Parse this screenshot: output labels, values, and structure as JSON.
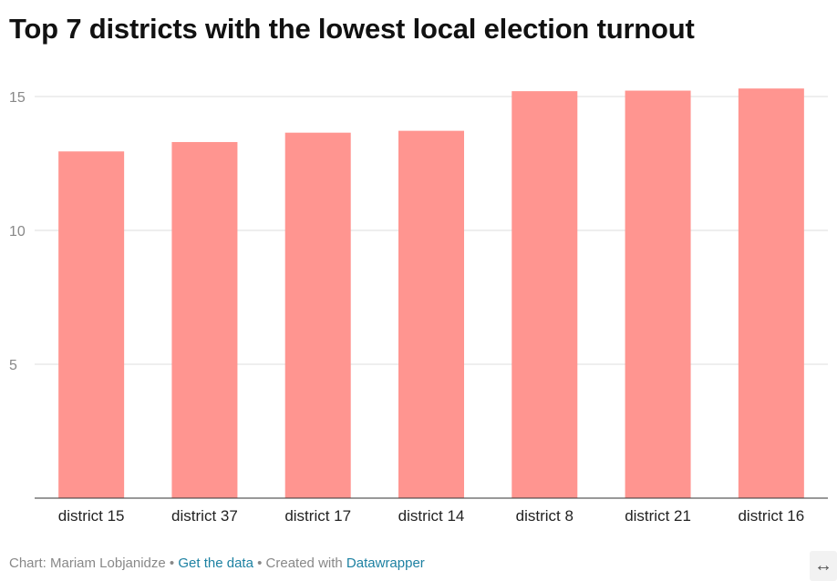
{
  "chart_data": {
    "type": "bar",
    "title": "Top 7 districts with the lowest local election turnout",
    "categories": [
      "district 15",
      "district 37",
      "district 17",
      "district 14",
      "district 8",
      "district 21",
      "district 16"
    ],
    "values": [
      12.95,
      13.3,
      13.65,
      13.72,
      15.2,
      15.22,
      15.3
    ],
    "ylim": [
      0,
      15
    ],
    "yticks": [
      5,
      10,
      15
    ],
    "grid": true,
    "bar_color": "#ff9590"
  },
  "footer": {
    "credit": "Chart: Mariam Lobjanidze",
    "separator": "•",
    "get_data": "Get the data",
    "created_with": "Created with",
    "tool": "Datawrapper"
  },
  "controls": {
    "expand_icon": "↔"
  },
  "colors": {
    "grid": "#dddddd",
    "axis": "#333333",
    "link": "#1d81a2"
  }
}
